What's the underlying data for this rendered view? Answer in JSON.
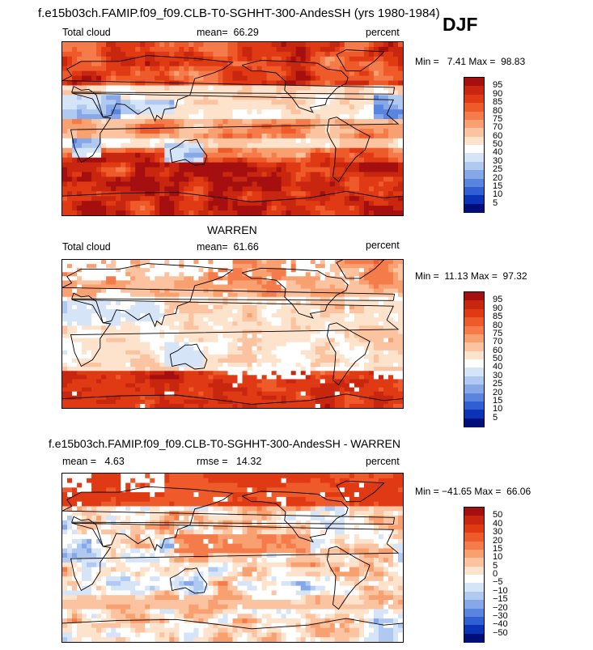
{
  "header": {
    "title": "f.e15b03ch.FAMIP.f09_f09.CLB-T0-SGHHT-300-AndesSH (yrs 1980-1984)",
    "season": "DJF"
  },
  "chart_data": [
    {
      "type": "heatmap",
      "title": "f.e15b03ch.FAMIP.f09_f09.CLB-T0-SGHHT-300-AndesSH (yrs 1980-1984)",
      "left_label": "Total cloud",
      "stat_label": "mean=",
      "stat_value": "66.29",
      "units": "percent",
      "min_label": "Min =",
      "min": "7.41",
      "max_label": "Max =",
      "max": "98.83",
      "colorbar": [
        "95",
        "90",
        "85",
        "80",
        "75",
        "70",
        "60",
        "50",
        "40",
        "30",
        "25",
        "20",
        "15",
        "10",
        "5"
      ],
      "colors": [
        "#a50f0f",
        "#c8260f",
        "#e03a14",
        "#ef5a2a",
        "#f57c4a",
        "#f8a070",
        "#fbc3a0",
        "#fde2cc",
        "#ffffff",
        "#d6e4f8",
        "#b0c9f0",
        "#86a8e8",
        "#5a85de",
        "#2f5fd2",
        "#0b33b8",
        "#000e7a"
      ],
      "pattern": "model"
    },
    {
      "type": "heatmap",
      "title": "WARREN",
      "left_label": "Total cloud",
      "stat_label": "mean=",
      "stat_value": "61.66",
      "units": "percent",
      "min_label": "Min =",
      "min": "11.13",
      "max_label": "Max =",
      "max": "97.32",
      "colorbar": [
        "95",
        "90",
        "85",
        "80",
        "75",
        "70",
        "60",
        "50",
        "40",
        "30",
        "25",
        "20",
        "15",
        "10",
        "5"
      ],
      "colors": [
        "#a50f0f",
        "#c8260f",
        "#e03a14",
        "#ef5a2a",
        "#f57c4a",
        "#f8a070",
        "#fbc3a0",
        "#fde2cc",
        "#ffffff",
        "#d6e4f8",
        "#b0c9f0",
        "#86a8e8",
        "#5a85de",
        "#2f5fd2",
        "#0b33b8",
        "#000e7a"
      ],
      "pattern": "obs"
    },
    {
      "type": "heatmap",
      "title": "f.e15b03ch.FAMIP.f09_f09.CLB-T0-SGHHT-300-AndesSH - WARREN",
      "left_label": "mean =",
      "left_value": "4.63",
      "stat_label": "rmse =",
      "stat_value": "14.32",
      "units": "percent",
      "min_label": "Min =",
      "min": "−41.65",
      "max_label": "Max =",
      "max": "66.06",
      "colorbar": [
        "50",
        "40",
        "30",
        "20",
        "15",
        "10",
        "5",
        "0",
        "−5",
        "−10",
        "−15",
        "−20",
        "−30",
        "−40",
        "−50"
      ],
      "colors": [
        "#a50f0f",
        "#c8260f",
        "#e03a14",
        "#ef5a2a",
        "#f57c4a",
        "#f8a070",
        "#fbc3a0",
        "#fde2cc",
        "#ffffff",
        "#d6e4f8",
        "#b0c9f0",
        "#86a8e8",
        "#5a85de",
        "#2f5fd2",
        "#0b33b8",
        "#000e7a"
      ],
      "pattern": "diff"
    }
  ]
}
